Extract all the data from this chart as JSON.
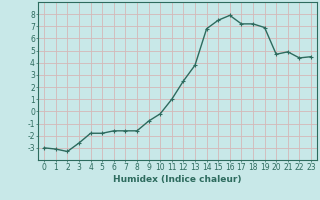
{
  "x": [
    0,
    1,
    2,
    3,
    4,
    5,
    6,
    7,
    8,
    9,
    10,
    11,
    12,
    13,
    14,
    15,
    16,
    17,
    18,
    19,
    20,
    21,
    22,
    23
  ],
  "y": [
    -3.0,
    -3.1,
    -3.3,
    -2.6,
    -1.8,
    -1.8,
    -1.6,
    -1.6,
    -1.6,
    -0.8,
    -0.2,
    1.0,
    2.5,
    3.8,
    6.8,
    7.5,
    7.9,
    7.2,
    7.2,
    6.9,
    4.7,
    4.9,
    4.4,
    4.5
  ],
  "line_color": "#2d6b5e",
  "marker": "+",
  "marker_size": 3,
  "bg_color": "#c8e8e8",
  "grid_color": "#d4b8b8",
  "xlabel": "Humidex (Indice chaleur)",
  "xlim": [
    -0.5,
    23.5
  ],
  "ylim": [
    -4,
    9
  ],
  "yticks": [
    -3,
    -2,
    -1,
    0,
    1,
    2,
    3,
    4,
    5,
    6,
    7,
    8
  ],
  "xticks": [
    0,
    1,
    2,
    3,
    4,
    5,
    6,
    7,
    8,
    9,
    10,
    11,
    12,
    13,
    14,
    15,
    16,
    17,
    18,
    19,
    20,
    21,
    22,
    23
  ],
  "tick_label_fontsize": 5.5,
  "xlabel_fontsize": 6.5,
  "line_width": 1.0
}
